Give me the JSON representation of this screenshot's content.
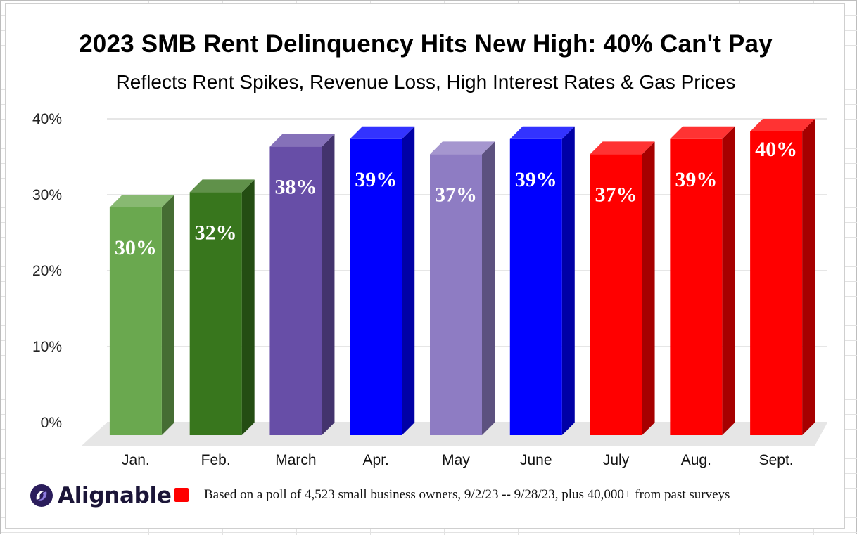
{
  "chart_data": {
    "type": "bar",
    "title": "2023 SMB Rent Delinquency Hits New High: 40% Can't Pay",
    "subtitle": "Reflects Rent Spikes, Revenue Loss, High Interest Rates & Gas Prices",
    "categories": [
      "Jan.",
      "Feb.",
      "March",
      "Apr.",
      "May",
      "June",
      "July",
      "Aug.",
      "Sept."
    ],
    "values": [
      30,
      32,
      38,
      39,
      37,
      39,
      37,
      39,
      40
    ],
    "data_labels": [
      "30%",
      "32%",
      "38%",
      "39%",
      "37%",
      "39%",
      "37%",
      "39%",
      "40%"
    ],
    "bar_colors": [
      "#6aa84f",
      "#38761d",
      "#674ea7",
      "#0000ff",
      "#8e7cc3",
      "#0000ff",
      "#ff0000",
      "#ff0000",
      "#ff0000"
    ],
    "y_ticks": [
      "0%",
      "10%",
      "20%",
      "30%",
      "40%"
    ],
    "y_tick_values": [
      0,
      10,
      20,
      30,
      40
    ],
    "ylim": [
      0,
      40
    ],
    "grid": true,
    "style": "3d-columns"
  },
  "legend": {
    "swatch_color": "#ff0000",
    "text": "Based on a poll of 4,523 small business owners, 9/2/23 -- 9/28/23, plus 40,000+ from past surveys"
  },
  "logo": {
    "text": "Alignable",
    "icon": "alignable-logo-icon",
    "color": "#1b1538",
    "accent": "#6a5acd"
  }
}
